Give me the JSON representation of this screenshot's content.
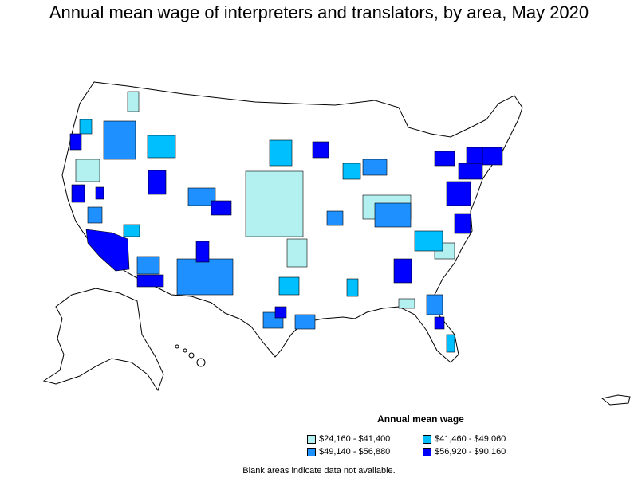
{
  "title": "Annual mean wage of interpreters and translators, by area, May 2020",
  "legend": {
    "title": "Annual mean wage",
    "items": [
      {
        "label": "$24,160 - $41,400",
        "color": "#b3f0f0"
      },
      {
        "label": "$41,460 - $49,060",
        "color": "#00bfff"
      },
      {
        "label": "$49,140 - $56,880",
        "color": "#1e90ff"
      },
      {
        "label": "$56,920 - $90,160",
        "color": "#0000ff"
      }
    ]
  },
  "footnote": "Blank areas indicate data not available."
}
